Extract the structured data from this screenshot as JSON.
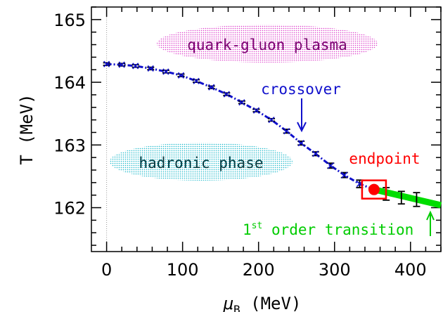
{
  "chart_data": {
    "type": "scatter",
    "xlabel": {
      "symbol": "μ",
      "subscript": "B",
      "unit": "(MeV)"
    },
    "ylabel": "T (MeV)",
    "xlim": [
      -20,
      440
    ],
    "ylim": [
      161.3,
      165.2
    ],
    "x_ticks": [
      "0",
      "100",
      "200",
      "300",
      "400"
    ],
    "y_ticks": [
      "162",
      "163",
      "164",
      "165"
    ],
    "crossover_points": {
      "x": [
        0,
        20,
        38,
        58,
        78,
        98,
        118,
        138,
        158,
        178,
        197,
        217,
        237,
        256,
        275,
        295,
        313,
        333
      ],
      "y": [
        164.29,
        164.28,
        164.26,
        164.22,
        164.17,
        164.11,
        164.02,
        163.92,
        163.81,
        163.68,
        163.55,
        163.4,
        163.22,
        163.03,
        162.86,
        162.67,
        162.52,
        162.38
      ],
      "err": [
        0.02,
        0.02,
        0.02,
        0.02,
        0.02,
        0.02,
        0.02,
        0.02,
        0.02,
        0.02,
        0.02,
        0.02,
        0.03,
        0.03,
        0.03,
        0.04,
        0.04,
        0.06
      ]
    },
    "first_order_points": {
      "x": [
        368,
        388,
        408
      ],
      "y": [
        162.22,
        162.16,
        162.13
      ],
      "err": [
        0.1,
        0.1,
        0.11
      ]
    },
    "first_order_line": {
      "x": [
        352,
        440
      ],
      "y": [
        162.29,
        162.04
      ]
    },
    "endpoint": {
      "x": 352,
      "y": 162.29
    },
    "annotations": {
      "quark_gluon_plasma": "quark-gluon plasma",
      "hadronic_phase": "hadronic phase",
      "crossover": "crossover",
      "endpoint": "endpoint",
      "first_order_prefix": "1",
      "first_order_sup": "st",
      "first_order_rest": " order transition"
    },
    "colors": {
      "crossover": "#1010cc",
      "endpoint": "#ff0000",
      "first_order": "#00dd00",
      "qgp_fill": "#dd44cc",
      "hadronic_fill": "#22bbcc"
    }
  }
}
